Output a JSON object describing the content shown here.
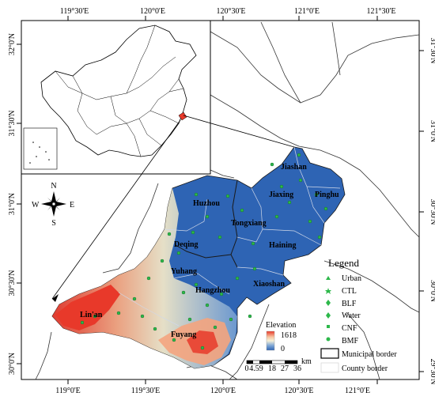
{
  "coord_ticks": {
    "top": [
      "119°30'E",
      "120°0'E",
      "120°30'E",
      "121°0'E",
      "121°30'E"
    ],
    "bottom": [
      "119°0'E",
      "119°30'E",
      "120°0'E",
      "120°30'E",
      "121°0'E"
    ],
    "left": [
      "32°0'N",
      "31°30'N",
      "31°0'N",
      "30°30'N",
      "30°0'N"
    ],
    "right": [
      "31°30'N",
      "31°0'N",
      "30°30'N",
      "30°0'N",
      "29°30'N"
    ]
  },
  "cities": [
    "Jiashan",
    "Jiaxing",
    "Pinghu",
    "Huzhou",
    "Tongxiang",
    "Haining",
    "Deqing",
    "Yuhang",
    "Hangzhou",
    "Xiaoshan",
    "Lin'an",
    "Fuyang"
  ],
  "north_arrow": {
    "n": "N",
    "s": "S",
    "e": "E",
    "w": "W"
  },
  "elevation": {
    "title": "Elevation",
    "max": "1618",
    "min": "0",
    "colors": [
      "#e8392a",
      "#f7c4a0",
      "#f5f0d8",
      "#7fa7d6",
      "#2e64b4"
    ]
  },
  "scale_bar": {
    "labels": [
      "0",
      "4.59",
      "18",
      "27",
      "36"
    ],
    "unit": "km"
  },
  "legend": {
    "title": "Legend",
    "items": [
      {
        "label": "Urban",
        "icon": "triangle-marker",
        "color": "#2db84a"
      },
      {
        "label": "CTL",
        "icon": "star-marker",
        "color": "#2db84a"
      },
      {
        "label": "BLF",
        "icon": "diamond-marker",
        "color": "#2db84a"
      },
      {
        "label": "Water",
        "icon": "diamond-marker",
        "color": "#2db84a"
      },
      {
        "label": "CNF",
        "icon": "square-marker",
        "color": "#2db84a"
      },
      {
        "label": "BMF",
        "icon": "circle-marker",
        "color": "#2db84a"
      }
    ],
    "borders": [
      "Municipal border",
      "County border"
    ]
  },
  "colors": {
    "lowland": "#2e64b4",
    "highland": "#e8392a",
    "marker": "#2db84a"
  }
}
